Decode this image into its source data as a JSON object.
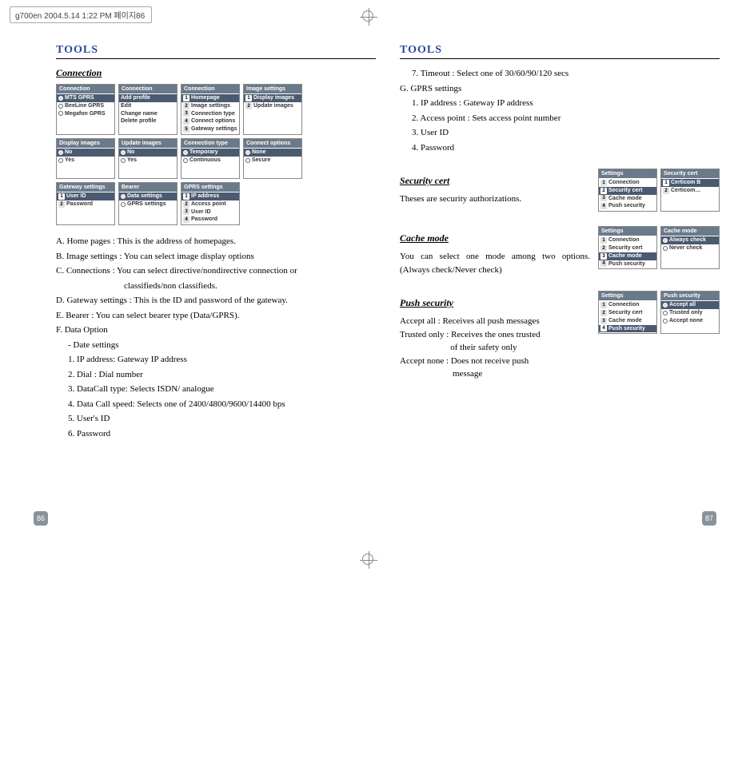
{
  "header_bar": "g700en  2004.5.14 1:22 PM  페이지86",
  "page_num_left": "86",
  "page_num_right": "87",
  "left": {
    "tools": "TOOLS",
    "connection_h": "Connection",
    "screens": {
      "r1": [
        {
          "title": "Connection",
          "rows": [
            {
              "p": "radio-sel",
              "t": "MTS GPRS",
              "hl": true
            },
            {
              "p": "radio",
              "t": "BeeLine GPRS"
            },
            {
              "p": "radio",
              "t": "Megafon GPRS"
            }
          ]
        },
        {
          "title": "Connection",
          "rows": [
            {
              "p": "",
              "t": "",
              "hl": false
            },
            {
              "p": "",
              "t": "Add profile",
              "hl": true
            },
            {
              "p": "",
              "t": "Edit"
            },
            {
              "p": "",
              "t": "Change name"
            },
            {
              "p": "",
              "t": "Delete profile"
            }
          ]
        },
        {
          "title": "Connection",
          "rows": [
            {
              "p": "num",
              "n": "1",
              "t": "Homepage",
              "hl": true
            },
            {
              "p": "num",
              "n": "2",
              "t": "Image settings"
            },
            {
              "p": "num",
              "n": "3",
              "t": "Connection type"
            },
            {
              "p": "num",
              "n": "4",
              "t": "Connect options"
            },
            {
              "p": "num",
              "n": "5",
              "t": "Gateway settings"
            }
          ]
        },
        {
          "title": "Image settings",
          "rows": [
            {
              "p": "num",
              "n": "1",
              "t": "Display images",
              "hl": true
            },
            {
              "p": "num",
              "n": "2",
              "t": "Update images"
            }
          ]
        }
      ],
      "r2": [
        {
          "title": "Display images",
          "rows": [
            {
              "p": "radio-sel",
              "t": "No",
              "hl": true
            },
            {
              "p": "radio",
              "t": "Yes"
            }
          ]
        },
        {
          "title": "Update images",
          "rows": [
            {
              "p": "radio-sel",
              "t": "No",
              "hl": true
            },
            {
              "p": "radio",
              "t": "Yes"
            }
          ]
        },
        {
          "title": "Connection type",
          "rows": [
            {
              "p": "radio-sel",
              "t": "Temporary",
              "hl": true
            },
            {
              "p": "radio",
              "t": "Continuous"
            }
          ]
        },
        {
          "title": "Connect options",
          "rows": [
            {
              "p": "radio-sel",
              "t": "None",
              "hl": true
            },
            {
              "p": "radio",
              "t": "Secure"
            }
          ]
        }
      ],
      "r3": [
        {
          "title": "Gateway settings",
          "rows": [
            {
              "p": "num",
              "n": "1",
              "t": "User ID",
              "hl": true
            },
            {
              "p": "num",
              "n": "2",
              "t": "Password"
            }
          ]
        },
        {
          "title": "Bearer",
          "rows": [
            {
              "p": "radio-sel",
              "t": "Data settings",
              "hl": true
            },
            {
              "p": "radio",
              "t": "GPRS settings"
            }
          ]
        },
        {
          "title": "GPRS settings",
          "rows": [
            {
              "p": "num",
              "n": "1",
              "t": "IP address",
              "hl": true
            },
            {
              "p": "num",
              "n": "2",
              "t": "Access point"
            },
            {
              "p": "num",
              "n": "3",
              "t": "User ID"
            },
            {
              "p": "num",
              "n": "4",
              "t": "Password"
            }
          ]
        }
      ]
    },
    "body": [
      {
        "lvl": 0,
        "t": "A. Home pages : This is the address of homepages."
      },
      {
        "lvl": 0,
        "t": "B. Image settings : You can select image display options"
      },
      {
        "lvl": 0,
        "t": "C. Connections : You can select directive/nondirective connection or"
      },
      {
        "lvl": 3,
        "t": "classifieds/non classifieds."
      },
      {
        "lvl": 0,
        "t": "D. Gateway settings : This is the ID and password of the gateway."
      },
      {
        "lvl": 0,
        "t": "E. Bearer : You can select bearer type (Data/GPRS)."
      },
      {
        "lvl": 0,
        "t": "F. Data Option"
      },
      {
        "lvl": 1,
        "t": "- Date settings"
      },
      {
        "lvl": 1,
        "t": "1. IP address: Gateway IP address"
      },
      {
        "lvl": 1,
        "t": "2. Dial : Dial number"
      },
      {
        "lvl": 1,
        "t": "3. DataCall type: Selects ISDN/ analogue"
      },
      {
        "lvl": 1,
        "t": "4. Data Call speed: Selects one of 2400/4800/9600/14400 bps"
      },
      {
        "lvl": 1,
        "t": "5. User's ID"
      },
      {
        "lvl": 1,
        "t": "6. Password"
      }
    ]
  },
  "right": {
    "tools": "TOOLS",
    "intro": [
      {
        "lvl": 1,
        "t": "7. Timeout : Select one of 30/60/90/120 secs"
      },
      {
        "lvl": 0,
        "t": "G. GPRS settings"
      },
      {
        "lvl": 1,
        "t": "1. IP address : Gateway IP address"
      },
      {
        "lvl": 1,
        "t": "2. Access point : Sets access point number"
      },
      {
        "lvl": 1,
        "t": "3. User ID"
      },
      {
        "lvl": 1,
        "t": "4. Password"
      }
    ],
    "sec1": {
      "h": "Security cert",
      "t": "Theses are security authorizations.",
      "screens": [
        {
          "title": "Settings",
          "rows": [
            {
              "p": "num",
              "n": "1",
              "t": "Connection"
            },
            {
              "p": "num",
              "n": "2",
              "t": "Security cert",
              "hl": true
            },
            {
              "p": "num",
              "n": "3",
              "t": "Cache mode"
            },
            {
              "p": "num",
              "n": "4",
              "t": "Push security"
            }
          ]
        },
        {
          "title": "Security cert",
          "rows": [
            {
              "p": "num",
              "n": "1",
              "t": "Certicom B",
              "hl": true
            },
            {
              "p": "num",
              "n": "2",
              "t": "Certicom…"
            }
          ]
        }
      ]
    },
    "sec2": {
      "h": "Cache mode",
      "t": "You can select one mode among two options. (Always check/Never check)",
      "screens": [
        {
          "title": "Settings",
          "rows": [
            {
              "p": "num",
              "n": "1",
              "t": "Connection"
            },
            {
              "p": "num",
              "n": "2",
              "t": "Security cert"
            },
            {
              "p": "num",
              "n": "3",
              "t": "Cache mode",
              "hl": true
            },
            {
              "p": "num",
              "n": "4",
              "t": "Push security"
            }
          ]
        },
        {
          "title": "Cache mode",
          "rows": [
            {
              "p": "radio-sel",
              "t": "Always check",
              "hl": true
            },
            {
              "p": "radio",
              "t": "Never check"
            }
          ]
        }
      ]
    },
    "sec3": {
      "h": "Push security",
      "lines": [
        "Accept all : Receives all push messages",
        "Trusted only : Receives the ones trusted",
        "                       of their safety only",
        "Accept none : Does not receive push",
        "                        message"
      ],
      "screens": [
        {
          "title": "Settings",
          "rows": [
            {
              "p": "num",
              "n": "1",
              "t": "Connection"
            },
            {
              "p": "num",
              "n": "2",
              "t": "Security cert"
            },
            {
              "p": "num",
              "n": "3",
              "t": "Cache mode"
            },
            {
              "p": "num",
              "n": "4",
              "t": "Push security",
              "hl": true
            }
          ]
        },
        {
          "title": "Push security",
          "rows": [
            {
              "p": "radio-sel",
              "t": "Accept all",
              "hl": true
            },
            {
              "p": "radio",
              "t": "Trusted only"
            },
            {
              "p": "radio",
              "t": "Accept none"
            }
          ]
        }
      ]
    }
  }
}
